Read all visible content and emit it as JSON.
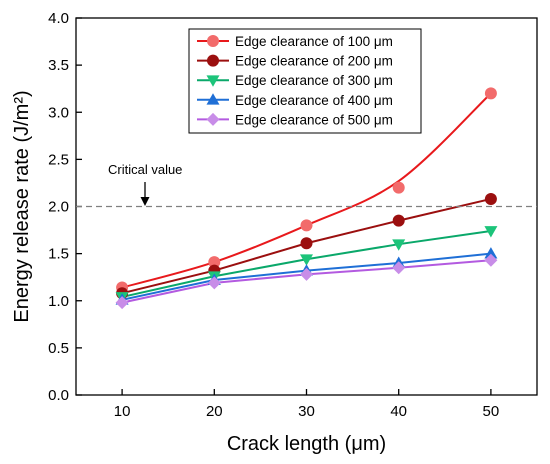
{
  "chart_data": {
    "type": "line",
    "title": "",
    "xlabel": "Crack length (μm)",
    "ylabel": "Energy release rate (J/m²)",
    "xlim": [
      5,
      55
    ],
    "ylim": [
      0.0,
      4.0
    ],
    "xticks": [
      "10",
      "20",
      "30",
      "40",
      "50"
    ],
    "yticks": [
      "0.0",
      "0.5",
      "1.0",
      "1.5",
      "2.0",
      "2.5",
      "3.0",
      "3.5",
      "4.0"
    ],
    "grid": false,
    "legend_position": "top-right",
    "x": [
      10,
      20,
      30,
      40,
      50
    ],
    "series": [
      {
        "name": "Edge clearance of 100 μm",
        "color": "#e8191c",
        "marker": "circle",
        "marker_color": "#f26b6b",
        "values": [
          1.14,
          1.41,
          1.8,
          2.2,
          3.2
        ]
      },
      {
        "name": "Edge clearance of 200 μm",
        "color": "#9b0f0f",
        "marker": "circle",
        "marker_color": "#9b0f0f",
        "values": [
          1.08,
          1.32,
          1.61,
          1.85,
          2.08
        ]
      },
      {
        "name": "Edge clearance of 300 μm",
        "color": "#0aa86a",
        "marker": "triangle-down",
        "marker_color": "#1cc47a",
        "values": [
          1.04,
          1.26,
          1.44,
          1.6,
          1.74
        ]
      },
      {
        "name": "Edge clearance of 400 μm",
        "color": "#1f6fd6",
        "marker": "triangle-up",
        "marker_color": "#1f6fd6",
        "values": [
          1.01,
          1.22,
          1.32,
          1.4,
          1.5
        ]
      },
      {
        "name": "Edge clearance of 500 μm",
        "color": "#b35ae0",
        "marker": "diamond",
        "marker_color": "#c88de8",
        "values": [
          0.98,
          1.19,
          1.28,
          1.35,
          1.43
        ]
      }
    ],
    "reference_line": {
      "y": 2.0,
      "style": "dashed",
      "color": "#808080"
    },
    "annotation": {
      "text": "Critical value",
      "arrow": "down"
    }
  }
}
